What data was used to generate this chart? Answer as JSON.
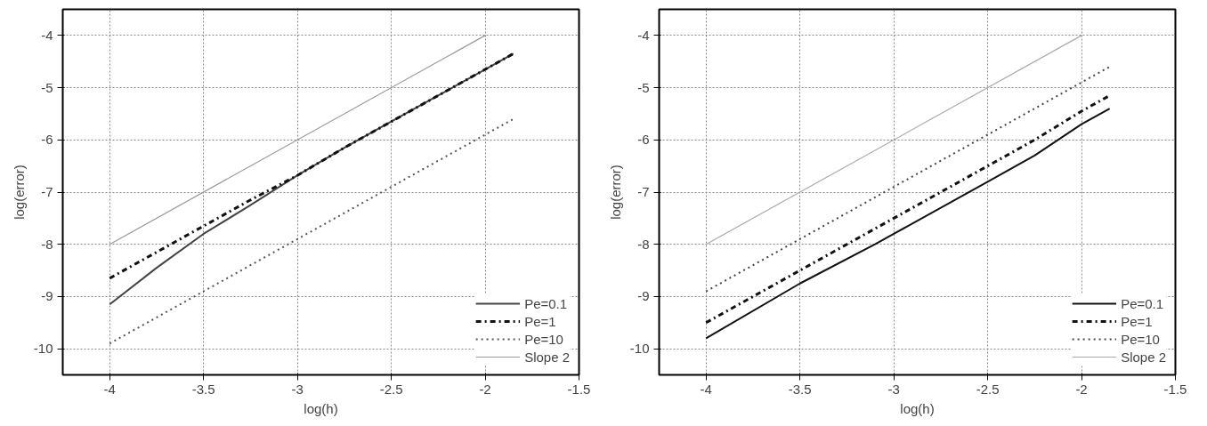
{
  "chart_data": [
    {
      "type": "line",
      "xlabel": "log(h)",
      "ylabel": "log(error)",
      "xlim": [
        -4.25,
        -1.5
      ],
      "ylim": [
        -10.5,
        -3.5
      ],
      "xticks": [
        -4,
        -3.5,
        -3,
        -2.5,
        -2,
        -1.5
      ],
      "yticks": [
        -10,
        -9,
        -8,
        -7,
        -6,
        -5,
        -4
      ],
      "grid": true,
      "legend": "bottom right",
      "series": [
        {
          "name": "Pe=0.1",
          "color": "#444444",
          "line_style": "solid",
          "x": [
            -4,
            -3.75,
            -3.5,
            -3.25,
            -3,
            -2.75,
            -2.5,
            -2.25,
            -2,
            -1.85
          ],
          "values": [
            -9.15,
            -8.45,
            -7.8,
            -7.25,
            -6.68,
            -6.15,
            -5.65,
            -5.15,
            -4.65,
            -4.35
          ]
        },
        {
          "name": "Pe=1",
          "color": "#111111",
          "line_style": "dashed",
          "x": [
            -4,
            -3.75,
            -3.5,
            -3.25,
            -3,
            -2.75,
            -2.5,
            -2.25,
            -2,
            -1.85
          ],
          "values": [
            -8.65,
            -8.15,
            -7.65,
            -7.15,
            -6.68,
            -6.15,
            -5.65,
            -5.15,
            -4.65,
            -4.35
          ]
        },
        {
          "name": "Pe=10",
          "color": "#555555",
          "line_style": "dotted",
          "x": [
            -4,
            -3,
            -2,
            -1.85
          ],
          "values": [
            -9.9,
            -7.9,
            -5.9,
            -5.6
          ]
        },
        {
          "name": "Slope 2",
          "color": "#999999",
          "line_style": "solid",
          "x": [
            -4,
            -2
          ],
          "values": [
            -8,
            -4
          ]
        }
      ]
    },
    {
      "type": "line",
      "xlabel": "log(h)",
      "ylabel": "log(error)",
      "xlim": [
        -4.25,
        -1.5
      ],
      "ylim": [
        -10.5,
        -3.5
      ],
      "xticks": [
        -4,
        -3.5,
        -3,
        -2.5,
        -2,
        -1.5
      ],
      "yticks": [
        -10,
        -9,
        -8,
        -7,
        -6,
        -5,
        -4
      ],
      "grid": true,
      "legend": "bottom right",
      "series": [
        {
          "name": "Pe=0.1",
          "color": "#111111",
          "line_style": "solid",
          "x": [
            -4,
            -3.5,
            -3.1,
            -3,
            -2.5,
            -2.25,
            -2,
            -1.85
          ],
          "values": [
            -9.8,
            -8.75,
            -8.0,
            -7.8,
            -6.8,
            -6.3,
            -5.7,
            -5.4
          ]
        },
        {
          "name": "Pe=1",
          "color": "#111111",
          "line_style": "dashed",
          "x": [
            -4,
            -3.5,
            -3,
            -2.5,
            -2.25,
            -2,
            -1.85
          ],
          "values": [
            -9.5,
            -8.5,
            -7.5,
            -6.5,
            -6.0,
            -5.45,
            -5.15
          ]
        },
        {
          "name": "Pe=10",
          "color": "#444444",
          "line_style": "dotted",
          "x": [
            -4,
            -3.5,
            -3,
            -2.5,
            -2,
            -1.85
          ],
          "values": [
            -8.9,
            -7.9,
            -6.9,
            -5.9,
            -4.9,
            -4.6
          ]
        },
        {
          "name": "Slope 2",
          "color": "#aaaaaa",
          "line_style": "solid",
          "x": [
            -4,
            -2
          ],
          "values": [
            -8,
            -4
          ]
        }
      ]
    }
  ]
}
